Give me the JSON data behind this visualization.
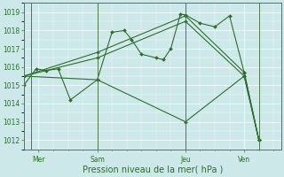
{
  "xlabel": "Pression niveau de la mer( hPa )",
  "ylim": [
    1011.5,
    1019.5
  ],
  "yticks": [
    1012,
    1013,
    1014,
    1015,
    1016,
    1017,
    1018,
    1019
  ],
  "background_color": "#cce8e8",
  "grid_color": "#ffffff",
  "line_color": "#2d6e2d",
  "day_labels": [
    "Mer",
    "Sam",
    "Jeu",
    "Ven"
  ],
  "day_positions": [
    12,
    60,
    132,
    180
  ],
  "vline_x": [
    6,
    60,
    132,
    192
  ],
  "xlim": [
    0,
    210
  ],
  "series": [
    {
      "x": [
        0,
        10,
        18,
        28,
        38,
        60,
        72,
        82,
        88,
        96,
        108,
        114,
        120,
        128,
        132,
        144,
        156,
        168,
        180,
        192
      ],
      "y": [
        1015.0,
        1015.9,
        1015.8,
        1015.9,
        1014.2,
        1015.3,
        1017.9,
        1018.0,
        1017.5,
        1016.7,
        1016.5,
        1016.4,
        1017.0,
        1018.9,
        1018.85,
        1018.4,
        1018.2,
        1018.8,
        1015.7,
        1012.0
      ]
    },
    {
      "x": [
        0,
        60,
        132,
        180,
        192
      ],
      "y": [
        1015.5,
        1016.8,
        1018.8,
        1015.7,
        1012.0
      ]
    },
    {
      "x": [
        0,
        60,
        132,
        180,
        192
      ],
      "y": [
        1015.5,
        1016.5,
        1018.5,
        1015.5,
        1012.0
      ]
    },
    {
      "x": [
        0,
        60,
        132,
        180,
        192
      ],
      "y": [
        1015.5,
        1015.3,
        1013.0,
        1015.5,
        1012.0
      ]
    }
  ],
  "marker": "D",
  "markersize": 2.0,
  "linewidth": 0.8,
  "label_fontsize": 5.5,
  "xlabel_fontsize": 7.0
}
